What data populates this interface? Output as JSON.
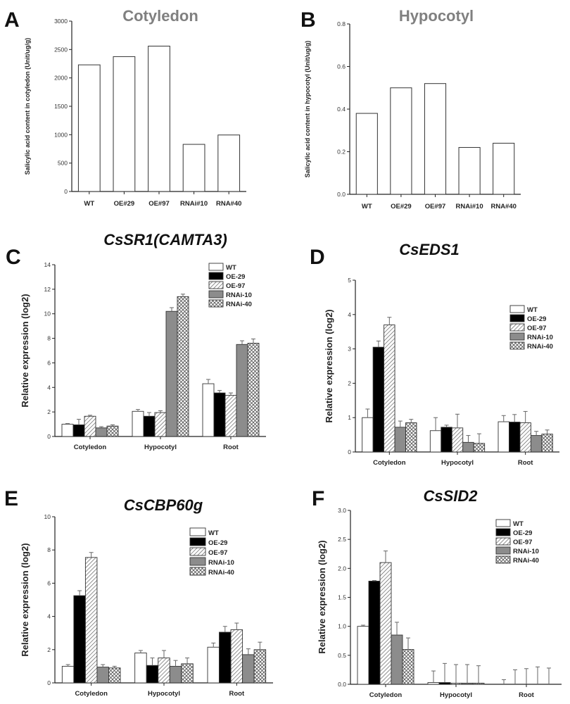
{
  "chart_data": [
    {
      "id": "A",
      "panel_letter": "A",
      "type": "bar",
      "title": "Cotyledon",
      "ylabel": "Salicylic acid content in cotyledon (Unit/ug/g)",
      "categories": [
        "WT",
        "OE#29",
        "OE#97",
        "RNAi#10",
        "RNA#40"
      ],
      "values": [
        2230,
        2375,
        2560,
        830,
        995
      ],
      "ylim": [
        0,
        3000
      ],
      "yticks": [
        0,
        500,
        1000,
        1500,
        2000,
        2500,
        3000
      ],
      "legend": "none"
    },
    {
      "id": "B",
      "panel_letter": "B",
      "type": "bar",
      "title": "Hypocotyl",
      "ylabel": "Salicylic acid content in hypocotyl (Unit/ug/g)",
      "categories": [
        "WT",
        "OE#29",
        "OE#97",
        "RNAi#10",
        "RNA#40"
      ],
      "values": [
        0.38,
        0.5,
        0.52,
        0.22,
        0.24
      ],
      "ylim": [
        0,
        0.8
      ],
      "yticks": [
        "0.0",
        "0.2",
        "0.4",
        "0.6",
        "0.8"
      ],
      "legend": "none"
    },
    {
      "id": "C",
      "panel_letter": "C",
      "type": "bar",
      "title": "CsSR1(CAMTA3)",
      "ylabel": "Relative expression (log2)",
      "categories": [
        "Cotyledon",
        "Hypocotyl",
        "Root"
      ],
      "ylim": [
        0,
        14
      ],
      "yticks": [
        0,
        2,
        4,
        6,
        8,
        10,
        12,
        14
      ],
      "legend": "top-right",
      "series": [
        {
          "name": "WT",
          "values": [
            1.0,
            2.05,
            4.3
          ],
          "errors": [
            0.05,
            0.15,
            0.35
          ]
        },
        {
          "name": "OE-29",
          "values": [
            0.95,
            1.65,
            3.55
          ],
          "errors": [
            0.45,
            0.3,
            0.2
          ]
        },
        {
          "name": "OE-97",
          "values": [
            1.65,
            1.95,
            3.35
          ],
          "errors": [
            0.08,
            0.15,
            0.2
          ]
        },
        {
          "name": "RNAi-10",
          "values": [
            0.7,
            10.2,
            7.5
          ],
          "errors": [
            0.1,
            0.3,
            0.3
          ]
        },
        {
          "name": "RNAi-40",
          "values": [
            0.85,
            11.4,
            7.6
          ],
          "errors": [
            0.1,
            0.2,
            0.35
          ]
        }
      ]
    },
    {
      "id": "D",
      "panel_letter": "D",
      "type": "bar",
      "title": "CsEDS1",
      "ylabel": "Relative expression (log2)",
      "categories": [
        "Cotyledon",
        "Hypocotyl",
        "Root"
      ],
      "ylim": [
        0,
        5
      ],
      "yticks": [
        0,
        1,
        2,
        3,
        4,
        5
      ],
      "legend": "top-right",
      "series": [
        {
          "name": "WT",
          "values": [
            1.0,
            0.62,
            0.88
          ],
          "errors": [
            0.25,
            0.38,
            0.18
          ]
        },
        {
          "name": "OE-29",
          "values": [
            3.05,
            0.72,
            0.87
          ],
          "errors": [
            0.18,
            0.06,
            0.22
          ]
        },
        {
          "name": "OE-97",
          "values": [
            3.7,
            0.7,
            0.85
          ],
          "errors": [
            0.22,
            0.4,
            0.33
          ]
        },
        {
          "name": "RNAi-10",
          "values": [
            0.72,
            0.28,
            0.48
          ],
          "errors": [
            0.18,
            0.2,
            0.12
          ]
        },
        {
          "name": "RNAi-40",
          "values": [
            0.85,
            0.25,
            0.52
          ],
          "errors": [
            0.1,
            0.28,
            0.12
          ]
        }
      ]
    },
    {
      "id": "E",
      "panel_letter": "E",
      "type": "bar",
      "title": "CsCBP60g",
      "ylabel": "Relative expression (log2)",
      "categories": [
        "Cotyledon",
        "Hypocotyl",
        "Root"
      ],
      "ylim": [
        0,
        10
      ],
      "yticks": [
        0,
        2,
        4,
        6,
        8,
        10
      ],
      "legend": "top-right",
      "series": [
        {
          "name": "WT",
          "values": [
            1.0,
            1.8,
            2.15
          ],
          "errors": [
            0.1,
            0.15,
            0.25
          ]
        },
        {
          "name": "OE-29",
          "values": [
            5.25,
            1.05,
            3.05
          ],
          "errors": [
            0.3,
            0.45,
            0.35
          ]
        },
        {
          "name": "OE-97",
          "values": [
            7.55,
            1.5,
            3.2
          ],
          "errors": [
            0.3,
            0.45,
            0.4
          ]
        },
        {
          "name": "RNAi-10",
          "values": [
            0.95,
            1.0,
            1.7
          ],
          "errors": [
            0.15,
            0.35,
            0.35
          ]
        },
        {
          "name": "RNAi-40",
          "values": [
            0.9,
            1.15,
            2.0
          ],
          "errors": [
            0.1,
            0.35,
            0.45
          ]
        }
      ]
    },
    {
      "id": "F",
      "panel_letter": "F",
      "type": "bar",
      "title": "CsSID2",
      "ylabel": "Relative expression (log2)",
      "categories": [
        "Cotyledon",
        "Hypocotyl",
        "Root"
      ],
      "ylim": [
        0,
        3.0
      ],
      "yticks": [
        "0.0",
        "0.5",
        "1.0",
        "1.5",
        "2.0",
        "2.5",
        "3.0"
      ],
      "legend": "top-right",
      "series": [
        {
          "name": "WT",
          "values": [
            1.0,
            0.03,
            0.0
          ],
          "errors": [
            0.02,
            0.2,
            0.08
          ]
        },
        {
          "name": "OE-29",
          "values": [
            1.78,
            0.03,
            0.0
          ],
          "errors": [
            0.01,
            0.33,
            0.25
          ]
        },
        {
          "name": "OE-97",
          "values": [
            2.1,
            0.02,
            0.0
          ],
          "errors": [
            0.2,
            0.32,
            0.27
          ]
        },
        {
          "name": "RNAi-10",
          "values": [
            0.85,
            0.02,
            0.0
          ],
          "errors": [
            0.22,
            0.32,
            0.3
          ]
        },
        {
          "name": "RNAi-40",
          "values": [
            0.6,
            0.02,
            0.0
          ],
          "errors": [
            0.2,
            0.3,
            0.28
          ]
        }
      ]
    }
  ]
}
